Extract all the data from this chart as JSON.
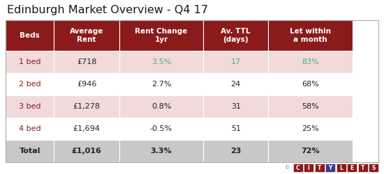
{
  "title": "Edinburgh Market Overview - Q4 17",
  "header": [
    "Beds",
    "Average\nRent",
    "Rent Change\n1yr",
    "Av. TTL\n(days)",
    "Let within\na month"
  ],
  "rows": [
    [
      "1 bed",
      "£718",
      "3.5%",
      "17",
      "83%"
    ],
    [
      "2 bed",
      "£946",
      "2.7%",
      "24",
      "68%"
    ],
    [
      "3 bed",
      "£1,278",
      "0.8%",
      "31",
      "58%"
    ],
    [
      "4 bed",
      "£1,694",
      "-0.5%",
      "51",
      "25%"
    ]
  ],
  "total_row": [
    "Total",
    "£1,016",
    "3.3%",
    "23",
    "72%"
  ],
  "header_bg": "#8B1A1A",
  "header_text": "#FFFFFF",
  "row1_bg": "#F2DADA",
  "row2_bg": "#FFFFFF",
  "total_bg": "#C8C8C8",
  "beds_color": "#8B1A1A",
  "green_color": "#3CB371",
  "dark_text": "#222222",
  "title_fontsize": 11.5,
  "header_fontsize": 7.5,
  "cell_fontsize": 8.0,
  "citylets_letters": [
    "C",
    "I",
    "T",
    "Y",
    "L",
    "E",
    "T",
    "S"
  ],
  "citylets_bg": [
    "#8B1A1A",
    "#8B1A1A",
    "#8B1A1A",
    "#3A3A8A",
    "#8B1A1A",
    "#8B1A1A",
    "#8B1A1A",
    "#8B1A1A"
  ]
}
